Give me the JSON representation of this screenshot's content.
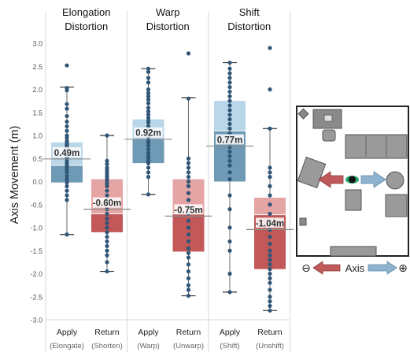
{
  "chart_data": {
    "type": "box",
    "ylabel": "Axis Movement (m)",
    "ylim": [
      -3.0,
      3.0
    ],
    "yticks": [
      "3.0",
      "2.5",
      "2.0",
      "1.5",
      "1.0",
      "0.5",
      "0.0",
      "-0.5",
      "-1.0",
      "-1.5",
      "-2.0",
      "-2.5",
      "-3.0"
    ],
    "ytick_values": [
      3.0,
      2.5,
      2.0,
      1.5,
      1.0,
      0.5,
      0.0,
      -0.5,
      -1.0,
      -1.5,
      -2.0,
      -2.5,
      -3.0
    ],
    "groups": [
      {
        "title": [
          "Elongation",
          "Distortion"
        ],
        "boxes": [
          {
            "label": "Apply",
            "sublabel": "(Elongate)",
            "kind": "apply",
            "min": -1.15,
            "q1": -0.02,
            "median": 0.35,
            "mean": 0.49,
            "q3": 0.85,
            "max": 2.05,
            "mean_label": "0.49m",
            "points": [
              2.52,
              2.03,
              1.98,
              1.68,
              1.58,
              1.42,
              1.3,
              1.2,
              1.1,
              1.0,
              0.95,
              0.88,
              0.84,
              0.8,
              0.77,
              0.73,
              0.68,
              0.62,
              0.58,
              0.53,
              0.5,
              0.45,
              0.4,
              0.35,
              0.3,
              0.25,
              0.2,
              0.12,
              0.05,
              -0.02,
              -0.1,
              -0.2,
              -0.3,
              -0.4,
              -1.15
            ]
          },
          {
            "label": "Return",
            "sublabel": "(Shorten)",
            "kind": "return",
            "min": -1.95,
            "q1": -1.1,
            "median": -0.7,
            "mean": -0.6,
            "q3": 0.05,
            "max": 1.0,
            "mean_label": "-0.60m",
            "points": [
              1.0,
              0.45,
              0.38,
              0.3,
              0.25,
              0.2,
              0.15,
              0.1,
              0.05,
              0.0,
              -0.05,
              -0.1,
              -0.2,
              -0.3,
              -0.4,
              -0.5,
              -0.6,
              -0.7,
              -0.8,
              -0.9,
              -1.0,
              -1.1,
              -1.2,
              -1.3,
              -1.4,
              -1.5,
              -1.6,
              -1.75,
              -1.95
            ]
          }
        ]
      },
      {
        "title": [
          "Warp",
          "Distortion"
        ],
        "boxes": [
          {
            "label": "Apply",
            "sublabel": "(Warp)",
            "kind": "apply",
            "min": -0.28,
            "q1": 0.4,
            "median": 0.92,
            "mean": 0.92,
            "q3": 1.35,
            "max": 2.45,
            "mean_label": "0.92m",
            "points": [
              2.45,
              2.38,
              2.25,
              2.15,
              2.0,
              1.92,
              1.85,
              1.78,
              1.7,
              1.6,
              1.52,
              1.45,
              1.38,
              1.32,
              1.28,
              1.2,
              1.12,
              1.05,
              0.98,
              0.9,
              0.85,
              0.78,
              0.7,
              0.62,
              0.55,
              0.5,
              0.45,
              0.4,
              0.3,
              0.2,
              0.1,
              -0.28
            ]
          },
          {
            "label": "Return",
            "sublabel": "(Unwarp)",
            "kind": "return",
            "min": -2.48,
            "q1": -1.52,
            "median": -0.7,
            "mean": -0.75,
            "q3": 0.05,
            "max": 1.82,
            "mean_label": "-0.75m",
            "points": [
              2.78,
              1.8,
              0.5,
              0.4,
              0.3,
              0.2,
              0.1,
              0.0,
              -0.1,
              -0.25,
              -0.4,
              -0.55,
              -0.7,
              -0.85,
              -1.0,
              -1.15,
              -1.3,
              -1.45,
              -1.55,
              -1.65,
              -1.8,
              -1.95,
              -2.1,
              -2.25,
              -2.35,
              -2.48
            ]
          }
        ]
      },
      {
        "title": [
          "Shift",
          "Distortion"
        ],
        "boxes": [
          {
            "label": "Apply",
            "sublabel": "(Shift)",
            "kind": "apply",
            "min": -2.4,
            "q1": 0.0,
            "median": 1.1,
            "mean": 0.77,
            "q3": 1.75,
            "max": 2.58,
            "mean_label": "0.77m",
            "points": [
              2.58,
              2.45,
              2.35,
              2.25,
              2.15,
              2.05,
              1.95,
              1.85,
              1.75,
              1.65,
              1.55,
              1.45,
              1.35,
              1.25,
              1.15,
              1.05,
              0.95,
              0.85,
              0.75,
              0.65,
              0.55,
              0.45,
              0.35,
              0.2,
              0.05,
              -0.3,
              -0.6,
              -1.0,
              -1.3,
              -1.5,
              -2.0,
              -2.4
            ]
          },
          {
            "label": "Return",
            "sublabel": "(Unshift)",
            "kind": "return",
            "min": -2.8,
            "q1": -1.9,
            "median": -0.72,
            "mean": -1.04,
            "q3": -0.35,
            "max": 1.15,
            "mean_label": "-1.04m",
            "points": [
              2.9,
              2.0,
              1.15,
              0.3,
              0.2,
              0.1,
              -0.1,
              -0.3,
              -0.5,
              -0.7,
              -0.9,
              -1.05,
              -1.2,
              -1.35,
              -1.5,
              -1.6,
              -1.7,
              -1.8,
              -1.9,
              -2.0,
              -2.1,
              -2.2,
              -2.35,
              -2.5,
              -2.6,
              -2.7,
              -2.8
            ]
          }
        ]
      }
    ],
    "colors": {
      "apply_light": "#b9d7e8",
      "apply_dark": "#6e9ab6",
      "return_light": "#e6a5a5",
      "return_dark": "#c25858",
      "point": "#2f5577",
      "line": "#6b6b6b",
      "mean_line": "#8a8a8a",
      "divider": "#d7d7d7",
      "axis_arrow_left": "#c05a5a",
      "axis_arrow_right": "#8fb3cf"
    }
  },
  "inset": {
    "legend_label": "Axis",
    "minus_symbol": "⊖",
    "plus_symbol": "⊕"
  }
}
